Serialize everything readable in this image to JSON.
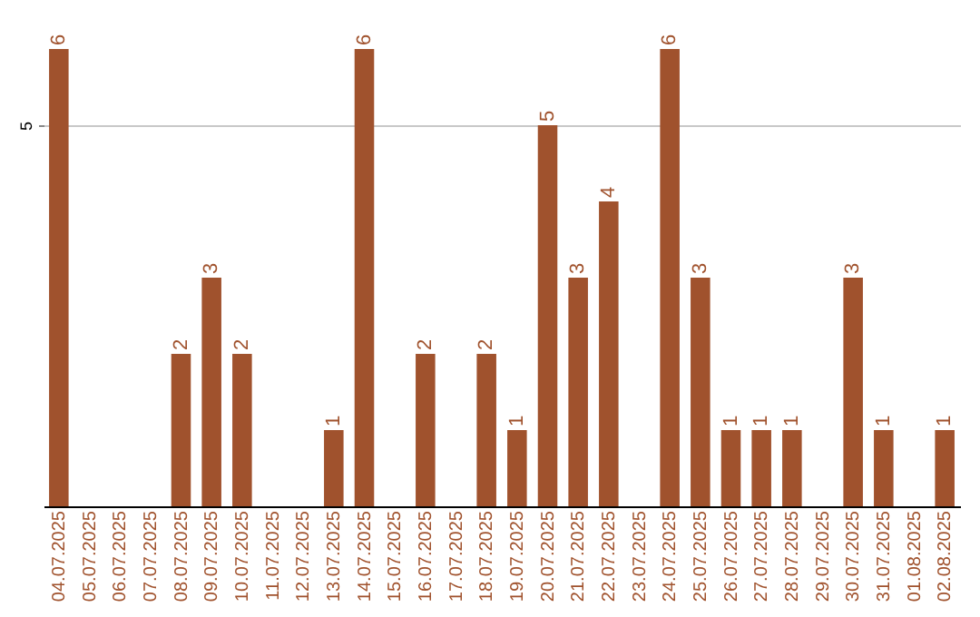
{
  "chart_data": {
    "type": "bar",
    "categories": [
      "04.07.2025",
      "05.07.2025",
      "06.07.2025",
      "07.07.2025",
      "08.07.2025",
      "09.07.2025",
      "10.07.2025",
      "11.07.2025",
      "12.07.2025",
      "13.07.2025",
      "14.07.2025",
      "15.07.2025",
      "16.07.2025",
      "17.07.2025",
      "18.07.2025",
      "19.07.2025",
      "20.07.2025",
      "21.07.2025",
      "22.07.2025",
      "23.07.2025",
      "24.07.2025",
      "25.07.2025",
      "26.07.2025",
      "27.07.2025",
      "28.07.2025",
      "29.07.2025",
      "30.07.2025",
      "31.07.2025",
      "01.08.2025",
      "02.08.2025"
    ],
    "values": [
      6,
      0,
      0,
      0,
      2,
      3,
      2,
      0,
      0,
      1,
      6,
      0,
      2,
      0,
      2,
      1,
      5,
      3,
      4,
      0,
      6,
      3,
      1,
      1,
      1,
      0,
      3,
      1,
      0,
      1
    ],
    "value_labels": [
      "6",
      null,
      null,
      null,
      "2",
      "3",
      "2",
      null,
      null,
      "1",
      "6",
      null,
      "2",
      null,
      "2",
      "1",
      "5",
      "3",
      "4",
      null,
      "6",
      "3",
      "1",
      "1",
      "1",
      null,
      "3",
      "1",
      null,
      "1"
    ],
    "color": "#a0522d",
    "ylim": [
      0,
      6
    ],
    "yticks": [
      5
    ],
    "grid": "y"
  }
}
